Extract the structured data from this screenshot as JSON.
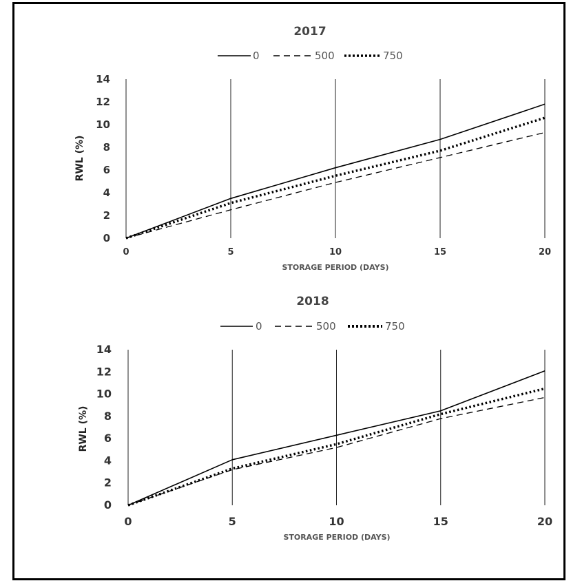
{
  "chart_data": [
    {
      "type": "line",
      "title": "2017",
      "xlabel": "STORAGE PERIOD (DAYS)",
      "ylabel": "RWL (%)",
      "x": [
        0,
        5,
        10,
        15,
        20
      ],
      "xlim": [
        0,
        20
      ],
      "ylim": [
        0,
        14
      ],
      "yticks": [
        0,
        2,
        4,
        6,
        8,
        10,
        12,
        14
      ],
      "grid": "vertical",
      "legend_position": "top",
      "series": [
        {
          "name": "0",
          "style": "solid",
          "values": [
            0,
            3.5,
            6.2,
            8.7,
            11.8
          ]
        },
        {
          "name": "500",
          "style": "dashed",
          "values": [
            0,
            2.5,
            4.9,
            7.1,
            9.3
          ]
        },
        {
          "name": "750",
          "style": "dotted",
          "values": [
            0,
            3.1,
            5.5,
            7.7,
            10.6
          ]
        }
      ]
    },
    {
      "type": "line",
      "title": "2018",
      "xlabel": "STORAGE PERIOD (DAYS)",
      "ylabel": "RWL (%)",
      "x": [
        0,
        5,
        10,
        15,
        20
      ],
      "xlim": [
        0,
        20
      ],
      "ylim": [
        0,
        14
      ],
      "yticks": [
        0,
        2,
        4,
        6,
        8,
        10,
        12,
        14
      ],
      "grid": "vertical",
      "legend_position": "top",
      "series": [
        {
          "name": "0",
          "style": "solid",
          "values": [
            0,
            4.1,
            6.3,
            8.5,
            12.1
          ]
        },
        {
          "name": "500",
          "style": "dashed",
          "values": [
            0,
            3.2,
            5.2,
            7.8,
            9.7
          ]
        },
        {
          "name": "750",
          "style": "dotted",
          "values": [
            0,
            3.3,
            5.5,
            8.2,
            10.5
          ]
        }
      ]
    }
  ]
}
